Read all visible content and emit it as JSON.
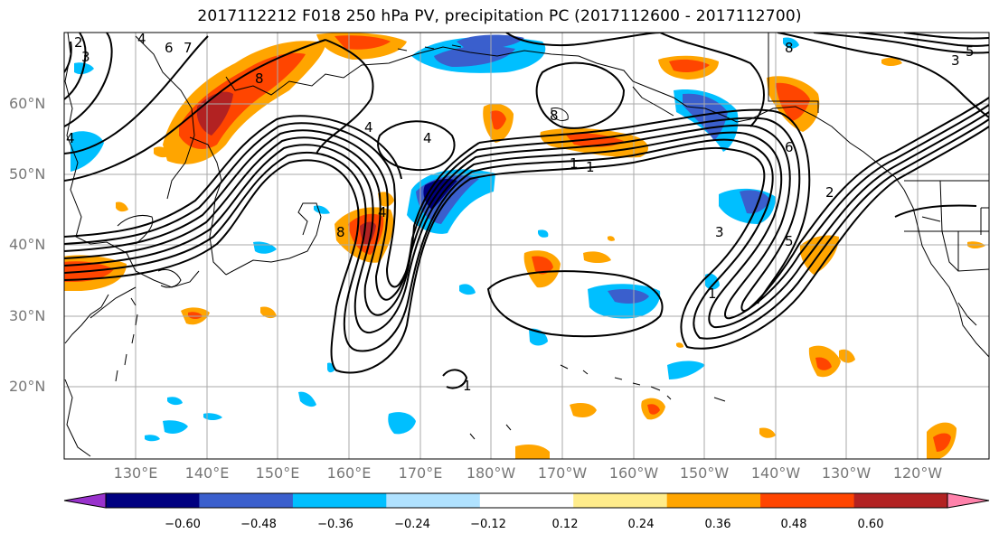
{
  "title": "2017112212 F018 250 hPa PV, precipitation PC (2017112600 - 2017112700)",
  "lat_labels": [
    "60°N",
    "50°N",
    "40°N",
    "30°N",
    "20°N"
  ],
  "lon_labels": [
    "130°E",
    "140°E",
    "150°E",
    "160°E",
    "170°E",
    "180°W",
    "170°W",
    "160°W",
    "150°W",
    "140°W",
    "130°W",
    "120°W"
  ],
  "colorbar": {
    "ticks": [
      "−0.60",
      "−0.48",
      "−0.36",
      "−0.24",
      "−0.12",
      "0.12",
      "0.24",
      "0.36",
      "0.48",
      "0.60"
    ],
    "colors": [
      "#9932cc",
      "#000080",
      "#3a5fcd",
      "#00bfff",
      "#b0e2ff",
      "#ffffff",
      "#ffec8b",
      "#ffa500",
      "#ff4500",
      "#b22222",
      "#ff82ab"
    ]
  },
  "contour_labels": [
    "2",
    "3",
    "4",
    "6",
    "7",
    "8",
    "8",
    "4",
    "1",
    "1",
    "4",
    "3",
    "5",
    "8",
    "6",
    "2",
    "5",
    "1",
    "4",
    "8",
    "1",
    "3",
    "4"
  ]
}
